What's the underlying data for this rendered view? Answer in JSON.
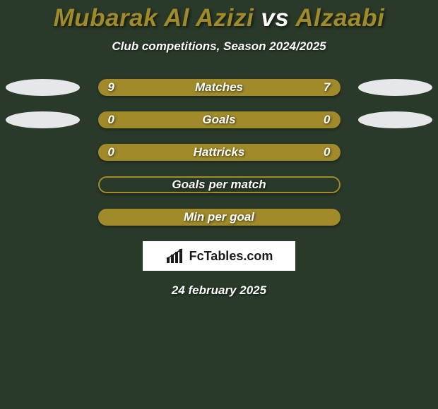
{
  "background_color": "#2a3a2a",
  "title": {
    "player1": "Mubarak Al Azizi",
    "vs": "vs",
    "player2": "Alzaabi",
    "player1_color": "#a08a2a",
    "vs_color": "#ffffff",
    "player2_color": "#a08a2a",
    "fontsize": 35
  },
  "subtitle": "Club competitions, Season 2024/2025",
  "rows": [
    {
      "label": "Matches",
      "left": "9",
      "right": "7",
      "bar_fill": "#a08a2a",
      "bar_border": "#a08a2a",
      "ellipse_left": true,
      "ellipse_right": true
    },
    {
      "label": "Goals",
      "left": "0",
      "right": "0",
      "bar_fill": "#a08a2a",
      "bar_border": "#a08a2a",
      "ellipse_left": true,
      "ellipse_right": true
    },
    {
      "label": "Hattricks",
      "left": "0",
      "right": "0",
      "bar_fill": "#a08a2a",
      "bar_border": "#a08a2a",
      "ellipse_left": false,
      "ellipse_right": false
    },
    {
      "label": "Goals per match",
      "left": "",
      "right": "",
      "bar_fill": "transparent",
      "bar_border": "#a08a2a",
      "ellipse_left": false,
      "ellipse_right": false
    },
    {
      "label": "Min per goal",
      "left": "",
      "right": "",
      "bar_fill": "#a08a2a",
      "bar_border": "#a08a2a",
      "ellipse_left": false,
      "ellipse_right": false
    }
  ],
  "ellipse_color": "#e6e7e9",
  "brand": "FcTables.com",
  "date": "24 february 2025"
}
